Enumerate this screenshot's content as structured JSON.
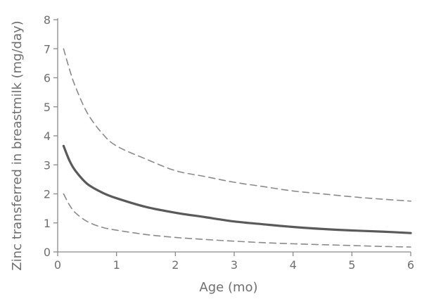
{
  "chart_data": {
    "type": "line",
    "title": "",
    "xlabel": "Age (mo)",
    "ylabel": "Zinc transferred in breastmilk (mg/day)",
    "xlim": [
      0,
      6
    ],
    "ylim": [
      0,
      8
    ],
    "xticks": [
      "0",
      "1",
      "2",
      "3",
      "4",
      "5",
      "6"
    ],
    "yticks": [
      "0",
      "1",
      "2",
      "3",
      "4",
      "5",
      "6",
      "7",
      "8"
    ],
    "grid": false,
    "legend": "none",
    "series": [
      {
        "style": "dashed",
        "color": "#8a8a8a",
        "x": [
          0.1,
          0.2,
          0.3,
          0.5,
          0.75,
          1,
          1.5,
          2,
          2.5,
          3,
          3.5,
          4,
          4.5,
          5,
          5.5,
          6
        ],
        "y": [
          7.0,
          6.3,
          5.7,
          4.8,
          4.1,
          3.65,
          3.2,
          2.8,
          2.6,
          2.4,
          2.25,
          2.1,
          2.0,
          1.9,
          1.82,
          1.75
        ]
      },
      {
        "style": "solid",
        "color": "#5a5a5a",
        "x": [
          0.1,
          0.2,
          0.3,
          0.5,
          0.75,
          1,
          1.5,
          2,
          2.5,
          3,
          3.5,
          4,
          4.5,
          5,
          5.5,
          6
        ],
        "y": [
          3.65,
          3.15,
          2.8,
          2.35,
          2.05,
          1.85,
          1.55,
          1.35,
          1.2,
          1.05,
          0.95,
          0.86,
          0.79,
          0.74,
          0.7,
          0.65
        ]
      },
      {
        "style": "dashed",
        "color": "#8a8a8a",
        "x": [
          0.1,
          0.2,
          0.3,
          0.5,
          0.75,
          1,
          1.5,
          2,
          2.5,
          3,
          3.5,
          4,
          4.5,
          5,
          5.5,
          6
        ],
        "y": [
          2.0,
          1.62,
          1.35,
          1.05,
          0.85,
          0.75,
          0.6,
          0.5,
          0.43,
          0.37,
          0.32,
          0.28,
          0.25,
          0.22,
          0.19,
          0.17
        ]
      }
    ]
  }
}
